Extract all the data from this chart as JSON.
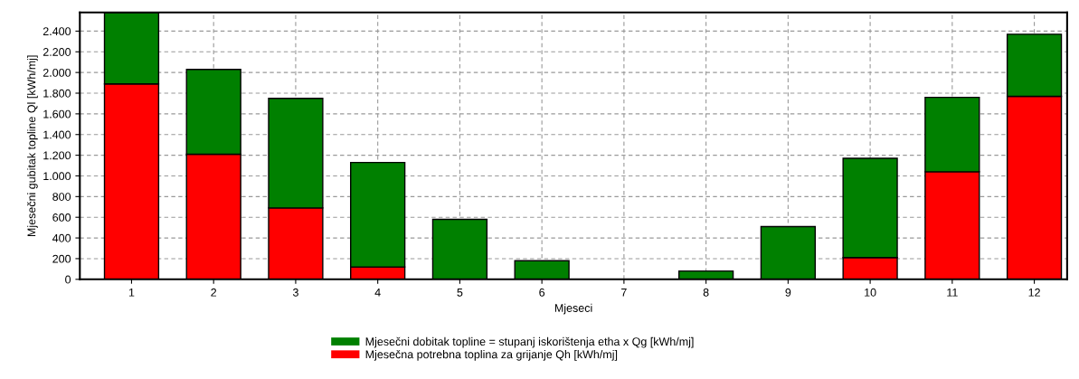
{
  "chart_data": {
    "type": "bar",
    "stacked": true,
    "xlabel": "Mjeseci",
    "ylabel": "Mjesečni gubitak topline Ql [kWh/mj]",
    "categories": [
      "1",
      "2",
      "3",
      "4",
      "5",
      "6",
      "7",
      "8",
      "9",
      "10",
      "11",
      "12"
    ],
    "series": [
      {
        "name": "Mjesečna potrebna toplina za grijanje Qh [kWh/mj]",
        "color": "#ff0000",
        "values": [
          1890,
          1210,
          690,
          120,
          0,
          0,
          0,
          0,
          0,
          210,
          1040,
          1770
        ]
      },
      {
        "name": "Mjesečni dobitak topline = stupanj iskorištenja etha x Qg [kWh/mj]",
        "color": "#008000",
        "values": [
          690,
          820,
          1060,
          1010,
          580,
          180,
          0,
          80,
          510,
          960,
          720,
          600
        ]
      }
    ],
    "ylim": [
      0,
      2580
    ],
    "yticks": [
      0,
      200,
      400,
      600,
      800,
      {
        "value": 1000,
        "label": "1.000"
      },
      {
        "value": 1200,
        "label": "1.200"
      },
      {
        "value": 1400,
        "label": "1.400"
      },
      {
        "value": 1600,
        "label": "1.600"
      },
      {
        "value": 1800,
        "label": "1.800"
      },
      {
        "value": 2000,
        "label": "2.000"
      },
      {
        "value": 2200,
        "label": "2.200"
      },
      {
        "value": 2400,
        "label": "2.400"
      }
    ],
    "grid": true,
    "legend": "bottom"
  }
}
